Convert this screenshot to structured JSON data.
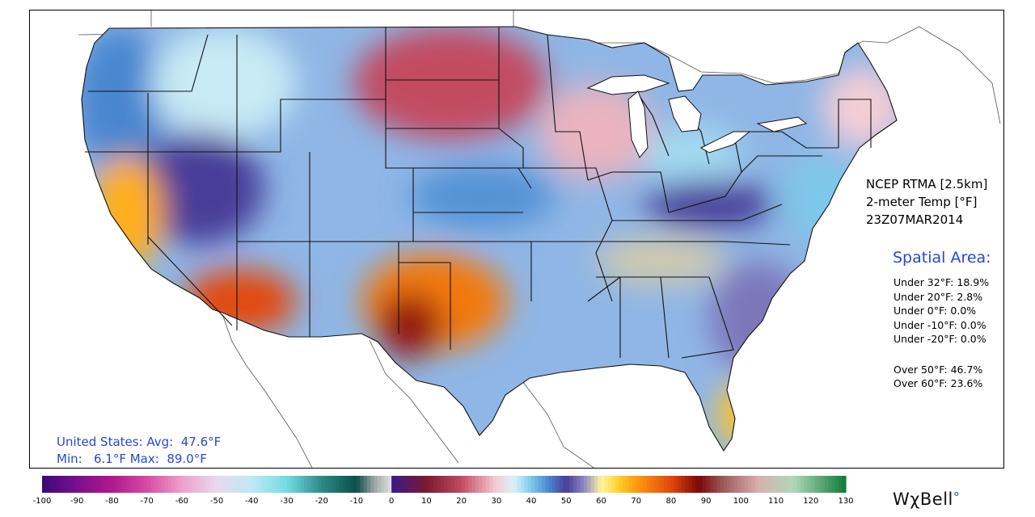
{
  "product": {
    "line1": "NCEP RTMA [2.5km]",
    "line2": "2-meter Temp [°F]",
    "line3": "23Z07MAR2014"
  },
  "spatial_area": {
    "title": "Spatial Area:",
    "under": [
      "Under 32°F: 18.9%",
      "Under 20°F: 2.8%",
      "Under 0°F: 0.0%",
      "Under -10°F: 0.0%",
      "Under -20°F: 0.0%"
    ],
    "over": [
      "Over 50°F: 46.7%",
      "Over 60°F: 23.6%"
    ]
  },
  "stats": {
    "line1": "United States: Avg:  47.6°F",
    "line2": "Min:   6.1°F Max:  89.0°F"
  },
  "colorbar": {
    "min": -100,
    "max": 130,
    "ticks": [
      -100,
      -90,
      -80,
      -70,
      -60,
      -50,
      -40,
      -30,
      -20,
      -10,
      0,
      10,
      20,
      30,
      40,
      50,
      60,
      70,
      80,
      90,
      100,
      110,
      120,
      130
    ],
    "stops": [
      {
        "value": -100,
        "color": "#3a0a7a"
      },
      {
        "value": -90,
        "color": "#7a1090"
      },
      {
        "value": -80,
        "color": "#b0188c"
      },
      {
        "value": -70,
        "color": "#d64aa6"
      },
      {
        "value": -60,
        "color": "#eea0cc"
      },
      {
        "value": -50,
        "color": "#e8d8f0"
      },
      {
        "value": -40,
        "color": "#bfe9f5"
      },
      {
        "value": -30,
        "color": "#74dce0"
      },
      {
        "value": -20,
        "color": "#2b8b86"
      },
      {
        "value": -10,
        "color": "#0e4e4a"
      },
      {
        "value": -5,
        "color": "#9aa6a4"
      },
      {
        "value": -0.1,
        "color": "#e0e0e0"
      },
      {
        "value": 0,
        "color": "#3a1a8a"
      },
      {
        "value": 10,
        "color": "#7a1a2e"
      },
      {
        "value": 20,
        "color": "#c24b62"
      },
      {
        "value": 30,
        "color": "#f4cdd6"
      },
      {
        "value": 35,
        "color": "#d9f2f8"
      },
      {
        "value": 40,
        "color": "#7ec8ea"
      },
      {
        "value": 45,
        "color": "#4a86d0"
      },
      {
        "value": 50,
        "color": "#4a3d9a"
      },
      {
        "value": 55,
        "color": "#8a86c2"
      },
      {
        "value": 60,
        "color": "#fff6a0"
      },
      {
        "value": 65,
        "color": "#ffcf2a"
      },
      {
        "value": 70,
        "color": "#ff9a10"
      },
      {
        "value": 80,
        "color": "#e2480a"
      },
      {
        "value": 88,
        "color": "#7a0808"
      },
      {
        "value": 95,
        "color": "#a05a5a"
      },
      {
        "value": 105,
        "color": "#d8b0b0"
      },
      {
        "value": 115,
        "color": "#b0d8b8"
      },
      {
        "value": 130,
        "color": "#107a3a"
      }
    ]
  },
  "logo": {
    "text": "WχBell",
    "mark": "°"
  },
  "temperature_regions": [
    {
      "region": "pacific-northwest",
      "temp_f": 45
    },
    {
      "region": "northern-rockies",
      "temp_f": 36
    },
    {
      "region": "great-basin",
      "temp_f": 50
    },
    {
      "region": "california-valley",
      "temp_f": 68
    },
    {
      "region": "desert-southwest",
      "temp_f": 80
    },
    {
      "region": "northern-plains",
      "temp_f": 20
    },
    {
      "region": "central-plains",
      "temp_f": 44
    },
    {
      "region": "southern-plains",
      "temp_f": 74
    },
    {
      "region": "west-texas-max",
      "temp_f": 86
    },
    {
      "region": "upper-midwest",
      "temp_f": 28
    },
    {
      "region": "great-lakes",
      "temp_f": 38
    },
    {
      "region": "ohio-valley",
      "temp_f": 50
    },
    {
      "region": "tennessee-valley",
      "temp_f": 58
    },
    {
      "region": "southeast",
      "temp_f": 54
    },
    {
      "region": "florida",
      "temp_f": 66
    },
    {
      "region": "mid-atlantic",
      "temp_f": 40
    },
    {
      "region": "new-england",
      "temp_f": 30
    }
  ]
}
